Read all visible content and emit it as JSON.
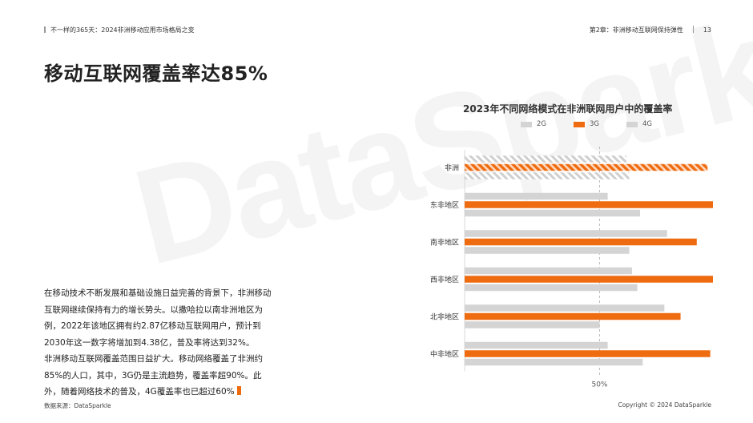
{
  "header": {
    "left_text": "不一样的365天：2024非洲移动应用市场格局之变",
    "right_text": "第2章：非洲移动互联网保持弹性",
    "page_number": "13"
  },
  "page_title": "移动互联网覆盖率达85%",
  "body_paragraphs": [
    "在移动技术不断发展和基础设施日益完善的背景下，非洲移动互联网继续保持有力的增长势头。以撒哈拉以南非洲地区为例，2022年该地区拥有约2.87亿移动互联网用户，预计到2030年这一数字将增加到4.38亿，普及率将达到32%。",
    "非洲移动互联网覆盖范围日益扩大。移动网络覆盖了非洲约85%的人口，其中，3G仍是主流趋势，覆盖率超90%。此外，随着网络技术的普及，4G覆盖率也已超过60%"
  ],
  "footer": {
    "source": "数据来源：DataSparkle",
    "copyright": "Copyright © 2024 DataSparkle"
  },
  "watermark": "DataSparkle",
  "colors": {
    "series_2g": "#d4d4d4",
    "series_3g": "#ee6b10",
    "series_4g": "#d4d4d4",
    "accent": "#ee6b10"
  },
  "chart_data": {
    "type": "bar",
    "orientation": "horizontal",
    "title": "2023年不同网络模式在非洲联网用户中的覆盖率",
    "categories": [
      "非洲",
      "东非地区",
      "南非地区",
      "西非地区",
      "北非地区",
      "中非地区"
    ],
    "series": [
      {
        "name": "2G",
        "values": [
          60,
          53,
          75,
          62,
          74,
          53
        ]
      },
      {
        "name": "3G",
        "values": [
          90,
          92,
          86,
          92,
          80,
          91
        ]
      },
      {
        "name": "4G",
        "values": [
          61,
          65,
          61,
          64,
          50,
          66
        ]
      }
    ],
    "highlight_category": "非洲",
    "reference_line": {
      "value": 50,
      "label": "50%"
    },
    "xlim": [
      0,
      92
    ],
    "legend_position": "top",
    "grid": false
  }
}
